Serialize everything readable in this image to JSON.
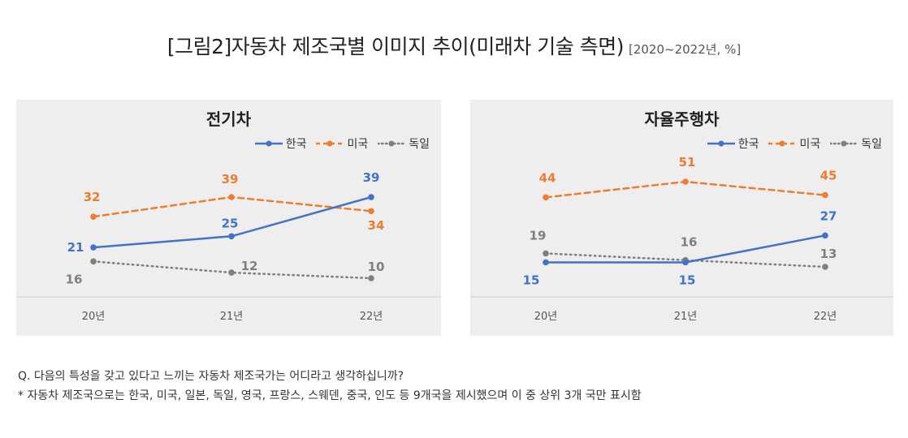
{
  "title": {
    "main": "[그림2]자동차 제조국별 이미지 추이(미래차 기술 측면)",
    "unit": "[2020~2022년, %]"
  },
  "colors": {
    "korea": "#4472c4",
    "usa": "#ed7d31",
    "germany": "#7f7f7f"
  },
  "chart_data": [
    {
      "type": "line",
      "title": "전기차",
      "categories": [
        "20년",
        "21년",
        "22년"
      ],
      "ylim": [
        0,
        50
      ],
      "legend_position": "top-right",
      "series": [
        {
          "name": "한국",
          "values": [
            21,
            25,
            39
          ],
          "style": "solid",
          "color": "#4472c4"
        },
        {
          "name": "미국",
          "values": [
            32,
            39,
            34
          ],
          "style": "dashed",
          "color": "#ed7d31"
        },
        {
          "name": "독일",
          "values": [
            16,
            12,
            10
          ],
          "style": "dotted",
          "color": "#7f7f7f"
        }
      ]
    },
    {
      "type": "line",
      "title": "자율주행차",
      "categories": [
        "20년",
        "21년",
        "22년"
      ],
      "ylim": [
        0,
        50
      ],
      "legend_position": "top-right",
      "series": [
        {
          "name": "한국",
          "values": [
            15,
            15,
            27
          ],
          "style": "solid",
          "color": "#4472c4"
        },
        {
          "name": "미국",
          "values": [
            44,
            51,
            45
          ],
          "style": "dashed",
          "color": "#ed7d31"
        },
        {
          "name": "독일",
          "values": [
            19,
            16,
            13
          ],
          "style": "dotted",
          "color": "#7f7f7f"
        }
      ]
    }
  ],
  "footnotes": {
    "question": "Q. 다음의 특성을 갖고 있다고 느끼는 자동차 제조국가는 어디라고 생각하십니까?",
    "note": "* 자동차 제조국으로는 한국, 미국, 일본, 독일,  영국, 프랑스, 스웨덴, 중국, 인도 등 9개국을 제시했으며 이 중 상위 3개 국만 표시함"
  }
}
